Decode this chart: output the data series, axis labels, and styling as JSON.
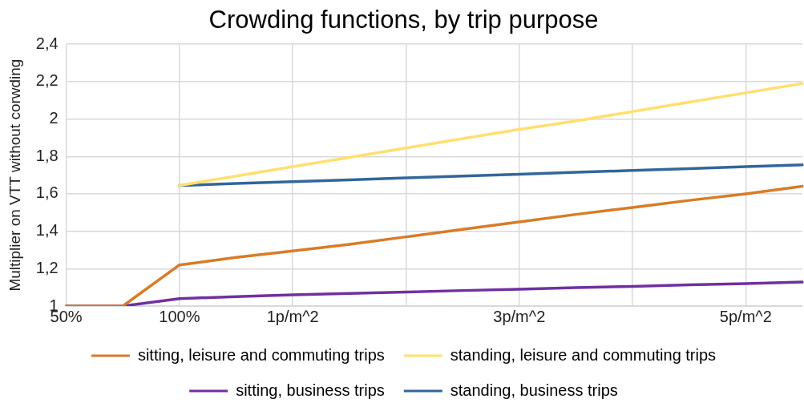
{
  "chart_data": {
    "type": "line",
    "title": "Crowding functions, by trip purpose",
    "ylabel": "Multiplier on VTT without corwding",
    "categories": [
      "50%",
      null,
      "100%",
      null,
      "1p/m^2",
      null,
      null,
      null,
      "3p/m^2",
      null,
      null,
      null,
      "5p/m^2",
      null
    ],
    "series": [
      {
        "name": "sitting, leisure and commuting trips",
        "color": "#d97b27",
        "values": [
          1,
          1,
          1.22,
          1.26,
          1.295,
          1.33,
          1.37,
          1.41,
          1.45,
          1.49,
          1.527,
          1.565,
          1.6,
          1.64
        ]
      },
      {
        "name": "standing, leisure and commuting trips",
        "color": "#ffdf70",
        "values": [
          null,
          null,
          1.645,
          1.695,
          1.745,
          1.795,
          1.845,
          1.895,
          1.945,
          1.99,
          2.04,
          2.09,
          2.14,
          2.19
        ]
      },
      {
        "name": "sitting, business trips",
        "color": "#7030a0",
        "values": [
          1,
          1,
          1.04,
          1.05,
          1.06,
          1.067,
          1.075,
          1.083,
          1.09,
          1.098,
          1.105,
          1.113,
          1.12,
          1.128
        ]
      },
      {
        "name": "standing, business trips",
        "color": "#336699",
        "values": [
          null,
          null,
          1.645,
          1.655,
          1.665,
          1.675,
          1.685,
          1.695,
          1.705,
          1.715,
          1.725,
          1.735,
          1.745,
          1.755
        ]
      }
    ],
    "ylim": [
      1,
      2.4
    ],
    "yticks": [
      {
        "value": 1,
        "label": "1"
      },
      {
        "value": 1.2,
        "label": "1,2"
      },
      {
        "value": 1.4,
        "label": "1,4"
      },
      {
        "value": 1.6,
        "label": "1,6"
      },
      {
        "value": 1.8,
        "label": "1,8"
      },
      {
        "value": 2,
        "label": "2"
      },
      {
        "value": 2.2,
        "label": "2,2"
      },
      {
        "value": 2.4,
        "label": "2,4"
      }
    ],
    "grid": true,
    "legend": "bottom",
    "marker": "none",
    "line_style": "solid"
  }
}
